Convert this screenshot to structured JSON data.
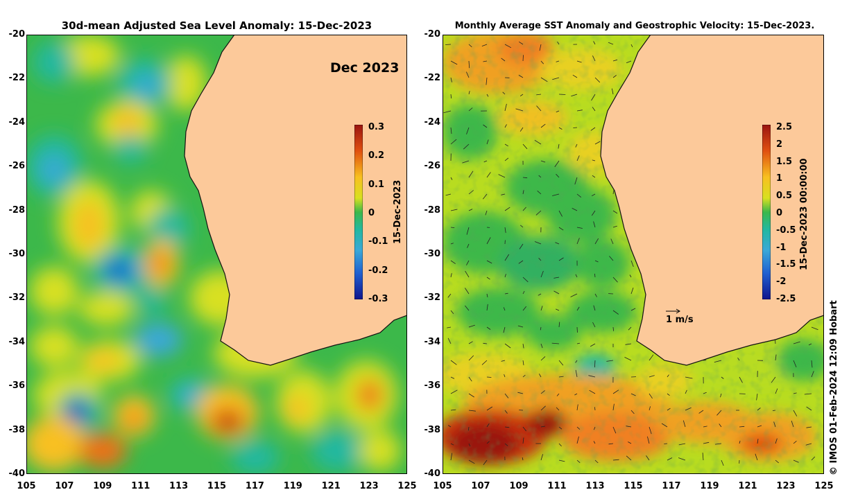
{
  "left_panel": {
    "title": "30d-mean Adjusted Sea Level Anomaly: 15-Dec-2023",
    "month_label": "Dec 2023",
    "colorbar": {
      "label": "15-Dec-2023",
      "ticks": [
        "0.3",
        "0.2",
        "0.1",
        "0",
        "-0.1",
        "-0.2",
        "-0.3"
      ]
    }
  },
  "right_panel": {
    "title": "Monthly Average SST Anomaly  and Geostrophic Velocity: 15-Dec-2023.",
    "velocity_scale_label": "1 m/s",
    "colorbar": {
      "label": "15-Dec-2023 00:00:00",
      "ticks": [
        "2.5",
        "2",
        "1.5",
        "1",
        "0.5",
        "0",
        "-0.5",
        "-1",
        "-1.5",
        "-2",
        "-2.5"
      ]
    }
  },
  "axes": {
    "y_ticks": [
      "-20",
      "-22",
      "-24",
      "-26",
      "-28",
      "-30",
      "-32",
      "-34",
      "-36",
      "-38",
      "-40"
    ],
    "x_ticks": [
      "105",
      "107",
      "109",
      "111",
      "113",
      "115",
      "117",
      "119",
      "121",
      "123",
      "125"
    ]
  },
  "credit": "© IMOS 01-Feb-2024 12:09 Hobart",
  "colors": {
    "land": "#fcc99a",
    "ocean_base": "#3cb84a",
    "extreme_high": "#9a1410",
    "extreme_low": "#10148c"
  }
}
